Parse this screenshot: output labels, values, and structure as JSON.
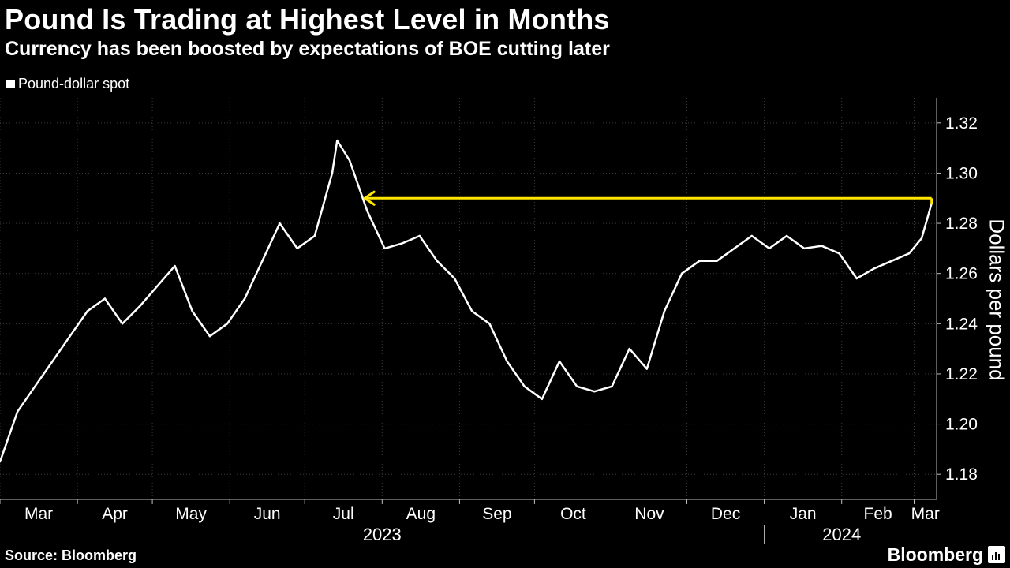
{
  "title": "Pound Is Trading at Highest Level in Months",
  "subtitle": "Currency has been boosted by expectations of BOE cutting later",
  "legend_label": "Pound-dollar spot",
  "source": "Source: Bloomberg",
  "brand": "Bloomberg",
  "colors": {
    "background": "#000000",
    "series": "#ffffff",
    "annotation": "#ffe600",
    "grid": "#3a3a3a"
  },
  "chart_data": {
    "type": "line",
    "title": "Pound Is Trading at Highest Level in Months",
    "subtitle": "Currency has been boosted by expectations of BOE cutting later",
    "ylabel": "Dollars per pound",
    "ylim": [
      1.17,
      1.33
    ],
    "yticks": [
      1.18,
      1.2,
      1.22,
      1.24,
      1.26,
      1.28,
      1.3,
      1.32
    ],
    "ytick_labels": [
      "1.18",
      "1.20",
      "1.22",
      "1.24",
      "1.26",
      "1.28",
      "1.30",
      "1.32"
    ],
    "xlim": [
      "2023-03-01",
      "2024-03-10"
    ],
    "month_ticks": [
      "2023-03-01",
      "2023-04-01",
      "2023-05-01",
      "2023-06-01",
      "2023-07-01",
      "2023-08-01",
      "2023-09-01",
      "2023-10-01",
      "2023-11-01",
      "2023-12-01",
      "2024-01-01",
      "2024-02-01",
      "2024-03-01"
    ],
    "month_labels": [
      "Mar",
      "Apr",
      "May",
      "Jun",
      "Jul",
      "Aug",
      "Sep",
      "Oct",
      "Nov",
      "Dec",
      "Jan",
      "Feb",
      "Mar"
    ],
    "year_labels": [
      {
        "label": "2023",
        "at": "2023-08-01"
      },
      {
        "label": "2024",
        "at": "2024-02-01"
      }
    ],
    "year_divider": "2024-01-01",
    "grid": "vertical",
    "legend_position": "top-left",
    "series": [
      {
        "name": "Pound-dollar spot",
        "x": [
          "2023-03-01",
          "2023-03-08",
          "2023-03-15",
          "2023-03-22",
          "2023-03-29",
          "2023-04-05",
          "2023-04-12",
          "2023-04-19",
          "2023-04-26",
          "2023-05-03",
          "2023-05-10",
          "2023-05-17",
          "2023-05-24",
          "2023-05-31",
          "2023-06-07",
          "2023-06-14",
          "2023-06-21",
          "2023-06-28",
          "2023-07-05",
          "2023-07-12",
          "2023-07-14",
          "2023-07-19",
          "2023-07-26",
          "2023-08-02",
          "2023-08-09",
          "2023-08-16",
          "2023-08-23",
          "2023-08-30",
          "2023-09-06",
          "2023-09-13",
          "2023-09-20",
          "2023-09-27",
          "2023-10-04",
          "2023-10-11",
          "2023-10-18",
          "2023-10-25",
          "2023-11-01",
          "2023-11-08",
          "2023-11-15",
          "2023-11-22",
          "2023-11-29",
          "2023-12-06",
          "2023-12-13",
          "2023-12-20",
          "2023-12-27",
          "2024-01-03",
          "2024-01-10",
          "2024-01-17",
          "2024-01-24",
          "2024-01-31",
          "2024-02-07",
          "2024-02-14",
          "2024-02-21",
          "2024-02-28",
          "2024-03-04",
          "2024-03-08"
        ],
        "y": [
          1.185,
          1.205,
          1.215,
          1.225,
          1.235,
          1.245,
          1.25,
          1.24,
          1.247,
          1.255,
          1.263,
          1.245,
          1.235,
          1.24,
          1.25,
          1.265,
          1.28,
          1.27,
          1.275,
          1.3,
          1.313,
          1.305,
          1.285,
          1.27,
          1.272,
          1.275,
          1.265,
          1.258,
          1.245,
          1.24,
          1.225,
          1.215,
          1.21,
          1.225,
          1.215,
          1.213,
          1.215,
          1.23,
          1.222,
          1.245,
          1.26,
          1.265,
          1.265,
          1.27,
          1.275,
          1.27,
          1.275,
          1.27,
          1.271,
          1.268,
          1.258,
          1.262,
          1.265,
          1.268,
          1.274,
          1.288
        ]
      }
    ],
    "annotations": [
      {
        "type": "arrow",
        "from": "2024-03-08",
        "to": "2023-07-25",
        "y": 1.29
      }
    ]
  }
}
